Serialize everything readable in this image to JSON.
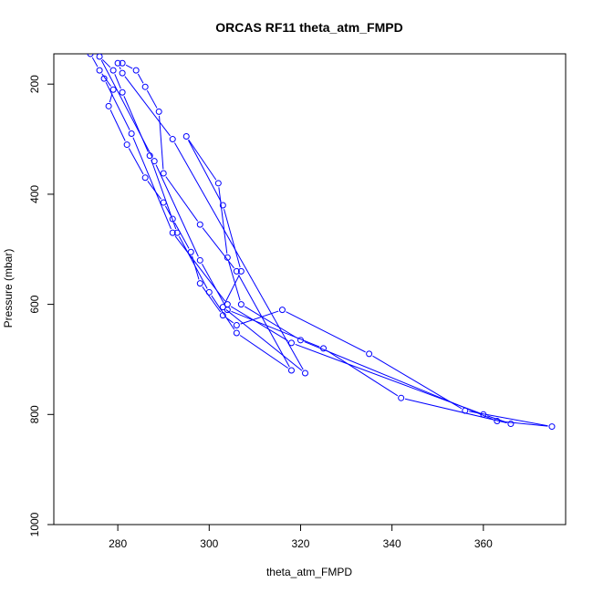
{
  "chart_data": {
    "type": "line",
    "title": "ORCAS RF11 theta_atm_FMPD",
    "xlabel": "theta_atm_FMPD",
    "ylabel": "Pressure (mbar)",
    "xlim": [
      266,
      378
    ],
    "ylim": [
      1000,
      145
    ],
    "y_reversed": true,
    "xticks": [
      280,
      300,
      320,
      340,
      360
    ],
    "yticks": [
      200,
      400,
      600,
      800,
      1000
    ],
    "series_color": "#0000ff",
    "marker": "open-circle",
    "grid": false,
    "legend": "none",
    "series": [
      {
        "points": [
          [
            274,
            145
          ],
          [
            276,
            175
          ],
          [
            279,
            210
          ],
          [
            278,
            240
          ],
          [
            282,
            310
          ],
          [
            286,
            370
          ],
          [
            290,
            415
          ],
          [
            292,
            445
          ],
          [
            296,
            505
          ],
          [
            298,
            562
          ],
          [
            303,
            620
          ],
          [
            306,
            638
          ],
          [
            316,
            610
          ],
          [
            335,
            690
          ],
          [
            356,
            793
          ],
          [
            375,
            822
          ],
          [
            363,
            812
          ],
          [
            320,
            665
          ],
          [
            307,
            600
          ],
          [
            304,
            515
          ],
          [
            302,
            380
          ],
          [
            295,
            295
          ],
          [
            303,
            420
          ],
          [
            307,
            540
          ],
          [
            303,
            605
          ],
          [
            321,
            725
          ],
          [
            292,
            300
          ],
          [
            281,
            180
          ],
          [
            280,
            162
          ],
          [
            281,
            162
          ],
          [
            284,
            175
          ],
          [
            286,
            205
          ],
          [
            289,
            250
          ],
          [
            290,
            362
          ],
          [
            298,
            455
          ],
          [
            306,
            540
          ],
          [
            318,
            720
          ],
          [
            306,
            652
          ],
          [
            300,
            578
          ],
          [
            293,
            470
          ],
          [
            287,
            330
          ],
          [
            281,
            215
          ],
          [
            279,
            175
          ],
          [
            276,
            150
          ],
          [
            288,
            340
          ],
          [
            298,
            520
          ],
          [
            304,
            610
          ],
          [
            325,
            680
          ],
          [
            342,
            770
          ],
          [
            366,
            817
          ],
          [
            360,
            800
          ],
          [
            318,
            670
          ],
          [
            304,
            600
          ],
          [
            292,
            470
          ],
          [
            283,
            290
          ],
          [
            277,
            190
          ]
        ]
      }
    ]
  }
}
